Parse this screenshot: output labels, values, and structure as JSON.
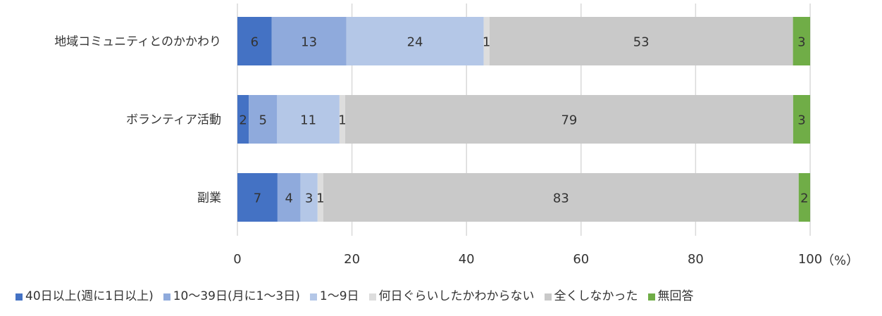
{
  "chart_data": {
    "type": "bar",
    "orientation": "horizontal",
    "stacked": true,
    "categories": [
      "地域コミュニティとのかかわり",
      "ボランティア活動",
      "副業"
    ],
    "series": [
      {
        "name": "40日以上(週に1日以上)",
        "color": "#4472C4",
        "values": [
          6,
          2,
          7
        ]
      },
      {
        "name": "10～39日(月に1～3日)",
        "color": "#8FAADC",
        "values": [
          13,
          5,
          4
        ]
      },
      {
        "name": "1～9日",
        "color": "#B4C7E7",
        "values": [
          24,
          11,
          3
        ]
      },
      {
        "name": "何日ぐらいしたかわからない",
        "color": "#DDDDDD",
        "values": [
          1,
          1,
          1
        ]
      },
      {
        "name": "全くしなかった",
        "color": "#C9C9C9",
        "values": [
          53,
          79,
          83
        ]
      },
      {
        "name": "無回答",
        "color": "#70AD47",
        "values": [
          3,
          3,
          2
        ]
      }
    ],
    "xlim": [
      0,
      100
    ],
    "xticks": [
      "0",
      "20",
      "40",
      "60",
      "80",
      "100"
    ],
    "xunit": "（%）",
    "grid": true,
    "legend": "bottom"
  }
}
